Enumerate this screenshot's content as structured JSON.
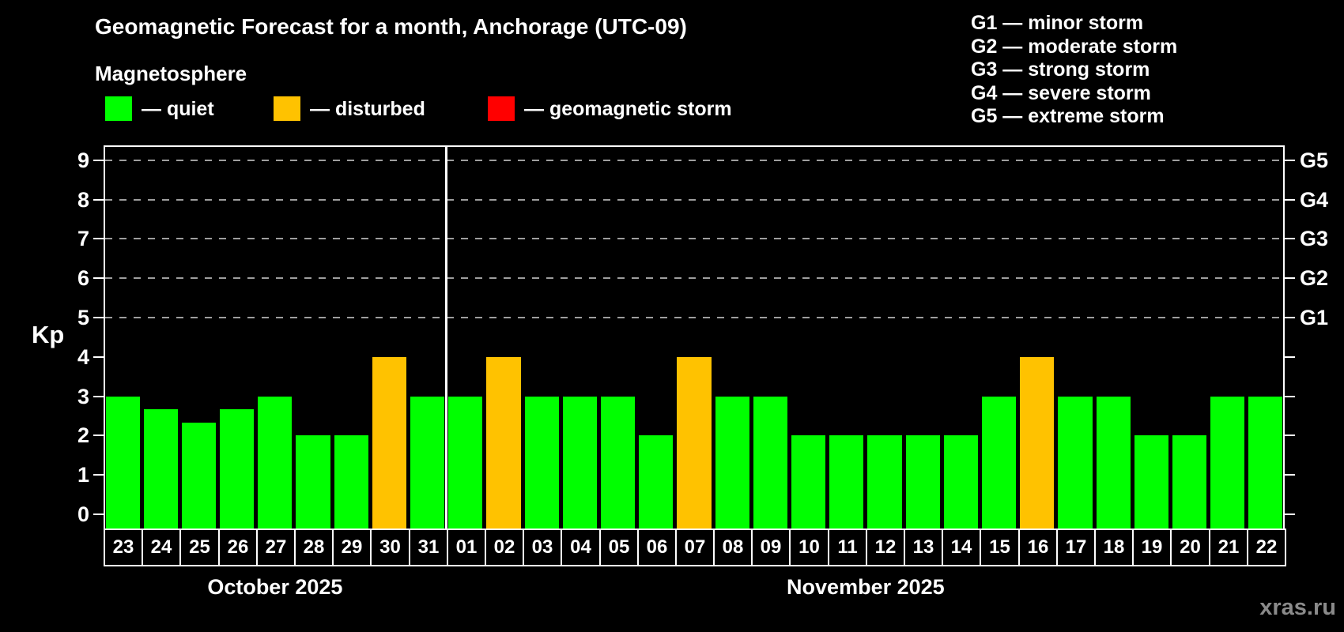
{
  "title": "Geomagnetic Forecast for a month, Anchorage (UTC-09)",
  "subtitle": "Magnetosphere",
  "watermark": "xras.ru",
  "status_colors": {
    "quiet": "#00ff00",
    "disturbed": "#ffc200",
    "storm": "#ff0000"
  },
  "legend": {
    "items": [
      {
        "text": "— quiet",
        "status": "quiet"
      },
      {
        "text": "— disturbed",
        "status": "disturbed"
      },
      {
        "text": "— geomagnetic storm",
        "status": "storm"
      }
    ]
  },
  "storm_scale": [
    {
      "text": "G1 — minor storm"
    },
    {
      "text": "G2 — moderate storm"
    },
    {
      "text": "G3 — strong storm"
    },
    {
      "text": "G4 — severe storm"
    },
    {
      "text": "G5 — extreme storm"
    }
  ],
  "chart_data": {
    "type": "bar",
    "title": "Geomagnetic Forecast for a month, Anchorage (UTC-09)",
    "xlabel": "",
    "ylabel": "Kp",
    "ylim": [
      0,
      9.4
    ],
    "yticks": [
      0,
      1,
      2,
      3,
      4,
      5,
      6,
      7,
      8,
      9
    ],
    "gridlines_at_kp": [
      5,
      6,
      7,
      8,
      9
    ],
    "grid_style": "dashed horizontal, legend top, months separated by vertical line",
    "right_axis": [
      {
        "kp": 5,
        "text": "G1"
      },
      {
        "kp": 6,
        "text": "G2"
      },
      {
        "kp": 7,
        "text": "G3"
      },
      {
        "kp": 8,
        "text": "G4"
      },
      {
        "kp": 9,
        "text": "G5"
      }
    ],
    "month_groups": [
      {
        "label": "October 2025",
        "count": 9
      },
      {
        "label": "November 2025",
        "count": 22
      }
    ],
    "categories": [
      "23",
      "24",
      "25",
      "26",
      "27",
      "28",
      "29",
      "30",
      "31",
      "01",
      "02",
      "03",
      "04",
      "05",
      "06",
      "07",
      "08",
      "09",
      "10",
      "11",
      "12",
      "13",
      "14",
      "15",
      "16",
      "17",
      "18",
      "19",
      "20",
      "21",
      "22"
    ],
    "values": [
      3,
      2.67,
      2.33,
      2.67,
      3,
      2,
      2,
      4,
      3,
      3,
      4,
      3,
      3,
      3,
      2,
      4,
      3,
      3,
      2,
      2,
      2,
      2,
      2,
      3,
      4,
      3,
      3,
      2,
      2,
      3,
      3
    ],
    "statuses": [
      "quiet",
      "quiet",
      "quiet",
      "quiet",
      "quiet",
      "quiet",
      "quiet",
      "disturbed",
      "quiet",
      "quiet",
      "disturbed",
      "quiet",
      "quiet",
      "quiet",
      "quiet",
      "disturbed",
      "quiet",
      "quiet",
      "quiet",
      "quiet",
      "quiet",
      "quiet",
      "quiet",
      "quiet",
      "disturbed",
      "quiet",
      "quiet",
      "quiet",
      "quiet",
      "quiet",
      "quiet"
    ]
  }
}
